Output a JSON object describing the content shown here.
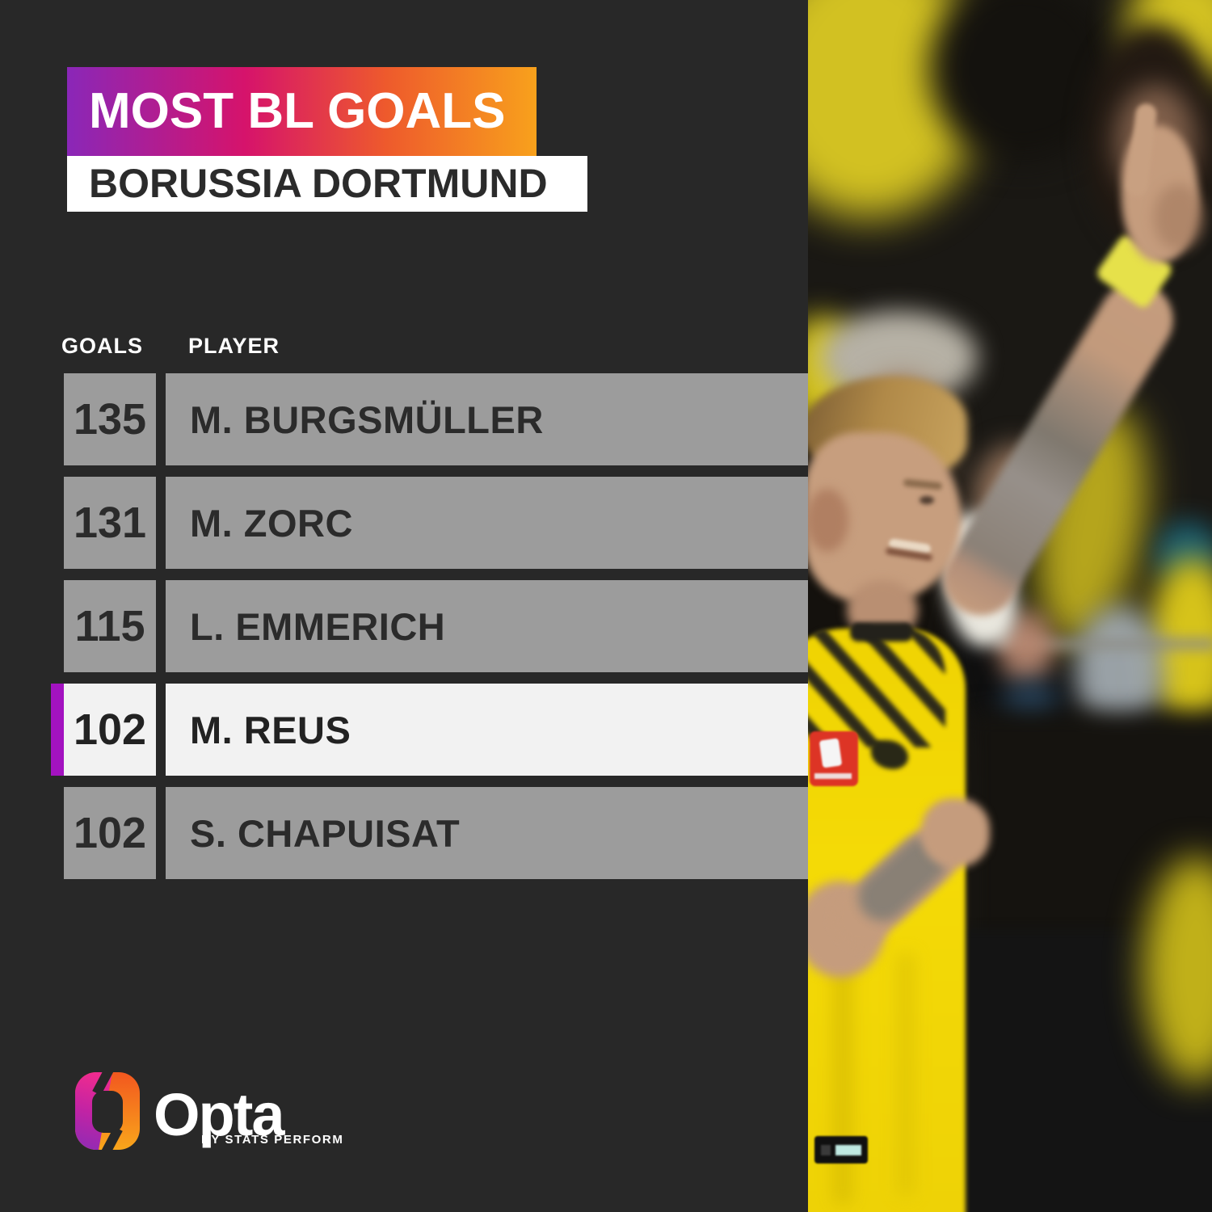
{
  "header": {
    "title": "MOST BL GOALS",
    "subtitle": "BORUSSIA DORTMUND"
  },
  "table": {
    "goals_header": "GOALS",
    "player_header": "PLAYER",
    "rows": [
      {
        "goals": "135",
        "player": "M. BURGSMÜLLER",
        "highlighted": false
      },
      {
        "goals": "131",
        "player": "M. ZORC",
        "highlighted": false
      },
      {
        "goals": "115",
        "player": "L. EMMERICH",
        "highlighted": false
      },
      {
        "goals": "102",
        "player": "M. REUS",
        "highlighted": true
      },
      {
        "goals": "102",
        "player": "S. CHAPUISAT",
        "highlighted": false
      }
    ]
  },
  "footer": {
    "brand": "Opta",
    "sub_brand": "BY STATS PERFORM"
  },
  "colors": {
    "background": "#282828",
    "banner_gradient_start": "#8a27b8",
    "banner_gradient_mid": "#d6136b",
    "banner_gradient_end": "#f8a11c",
    "row_gray": "#9c9c9c",
    "row_highlight": "#f2f2f2",
    "highlight_accent": "#a312c0",
    "row_text": "#2b2b2b",
    "header_text": "#ffffff",
    "jersey_yellow": "#f4da06"
  },
  "chart_data": {
    "type": "table",
    "title": "MOST BL GOALS",
    "subtitle": "BORUSSIA DORTMUND",
    "columns": [
      "GOALS",
      "PLAYER"
    ],
    "rows": [
      [
        135,
        "M. BURGSMÜLLER"
      ],
      [
        131,
        "M. ZORC"
      ],
      [
        115,
        "L. EMMERICH"
      ],
      [
        102,
        "M. REUS"
      ],
      [
        102,
        "S. CHAPUISAT"
      ]
    ],
    "highlighted_row": "M. REUS",
    "legend_position": "none",
    "grid": false
  }
}
